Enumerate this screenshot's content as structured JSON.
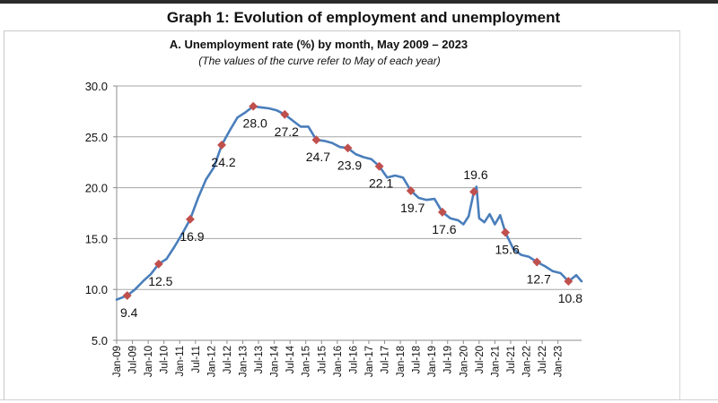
{
  "header": {
    "graph_title": "Graph 1: Evolution of employment and unemployment"
  },
  "chart_data": {
    "type": "line",
    "title": "A. Unemployment rate (%) by month, May  2009 – 2023",
    "subtitle": "(The values of the curve refer to May of each year)",
    "xlabel": "",
    "ylabel": "",
    "ylim": [
      5,
      30
    ],
    "yticks": [
      "5.0",
      "10.0",
      "15.0",
      "20.0",
      "25.0",
      "30.0"
    ],
    "grid": "horizontal",
    "x_range": [
      "2009-01",
      "2023-10"
    ],
    "xtick_labels": [
      "Jan-09",
      "Jul-09",
      "Jan-10",
      "Jul-10",
      "Jan-11",
      "Jul-11",
      "Jan-12",
      "Jul-12",
      "Jan-13",
      "Jul-13",
      "Jan-14",
      "Jul-14",
      "Jan-15",
      "Jul-15",
      "Jan-16",
      "Jul-16",
      "Jan-17",
      "Jul-17",
      "Jan-18",
      "Jul-18",
      "Jan-19",
      "Jul-19",
      "Jan-20",
      "Jul-20",
      "Jan-21",
      "Jul-21",
      "Jan-22",
      "Jul-22",
      "Jan-23"
    ],
    "line_color": "#4a7ebb",
    "marker_color": "#c0504d",
    "series": [
      {
        "points": [
          [
            "2009-01",
            9.0
          ],
          [
            "2009-03",
            9.2
          ],
          [
            "2009-05",
            9.4
          ],
          [
            "2009-08",
            10.0
          ],
          [
            "2009-11",
            10.8
          ],
          [
            "2010-02",
            11.5
          ],
          [
            "2010-05",
            12.5
          ],
          [
            "2010-08",
            13.0
          ],
          [
            "2010-11",
            14.2
          ],
          [
            "2011-02",
            15.5
          ],
          [
            "2011-05",
            16.9
          ],
          [
            "2011-08",
            19.0
          ],
          [
            "2011-11",
            20.8
          ],
          [
            "2012-02",
            22.0
          ],
          [
            "2012-05",
            24.2
          ],
          [
            "2012-08",
            25.6
          ],
          [
            "2012-11",
            26.9
          ],
          [
            "2013-02",
            27.4
          ],
          [
            "2013-05",
            28.0
          ],
          [
            "2013-08",
            27.9
          ],
          [
            "2013-11",
            27.8
          ],
          [
            "2014-02",
            27.6
          ],
          [
            "2014-05",
            27.2
          ],
          [
            "2014-08",
            26.6
          ],
          [
            "2014-11",
            26.0
          ],
          [
            "2015-02",
            26.0
          ],
          [
            "2015-05",
            24.7
          ],
          [
            "2015-08",
            24.6
          ],
          [
            "2015-11",
            24.4
          ],
          [
            "2016-02",
            24.0
          ],
          [
            "2016-05",
            23.9
          ],
          [
            "2016-08",
            23.3
          ],
          [
            "2016-11",
            23.0
          ],
          [
            "2017-02",
            22.8
          ],
          [
            "2017-05",
            22.1
          ],
          [
            "2017-08",
            21.0
          ],
          [
            "2017-11",
            21.2
          ],
          [
            "2018-02",
            21.0
          ],
          [
            "2018-05",
            19.7
          ],
          [
            "2018-08",
            19.0
          ],
          [
            "2018-11",
            18.8
          ],
          [
            "2019-02",
            18.9
          ],
          [
            "2019-05",
            17.6
          ],
          [
            "2019-08",
            17.0
          ],
          [
            "2019-11",
            16.8
          ],
          [
            "2020-01",
            16.4
          ],
          [
            "2020-03",
            17.2
          ],
          [
            "2020-05",
            19.6
          ],
          [
            "2020-06",
            20.1
          ],
          [
            "2020-07",
            17.0
          ],
          [
            "2020-09",
            16.6
          ],
          [
            "2020-11",
            17.4
          ],
          [
            "2021-01",
            16.4
          ],
          [
            "2021-03",
            17.3
          ],
          [
            "2021-05",
            15.6
          ],
          [
            "2021-08",
            14.0
          ],
          [
            "2021-11",
            13.4
          ],
          [
            "2022-02",
            13.2
          ],
          [
            "2022-05",
            12.7
          ],
          [
            "2022-08",
            12.3
          ],
          [
            "2022-11",
            11.8
          ],
          [
            "2023-02",
            11.6
          ],
          [
            "2023-05",
            10.8
          ],
          [
            "2023-08",
            11.4
          ],
          [
            "2023-10",
            10.8
          ]
        ]
      }
    ],
    "labeled_points": [
      {
        "x": "2009-05",
        "value": 9.4,
        "label": "9.4",
        "pos": "below"
      },
      {
        "x": "2010-05",
        "value": 12.5,
        "label": "12.5",
        "pos": "below"
      },
      {
        "x": "2011-05",
        "value": 16.9,
        "label": "16.9",
        "pos": "below"
      },
      {
        "x": "2012-05",
        "value": 24.2,
        "label": "24.2",
        "pos": "below"
      },
      {
        "x": "2013-05",
        "value": 28.0,
        "label": "28.0",
        "pos": "below"
      },
      {
        "x": "2014-05",
        "value": 27.2,
        "label": "27.2",
        "pos": "below"
      },
      {
        "x": "2015-05",
        "value": 24.7,
        "label": "24.7",
        "pos": "below"
      },
      {
        "x": "2016-05",
        "value": 23.9,
        "label": "23.9",
        "pos": "below"
      },
      {
        "x": "2017-05",
        "value": 22.1,
        "label": "22.1",
        "pos": "below"
      },
      {
        "x": "2018-05",
        "value": 19.7,
        "label": "19.7",
        "pos": "below"
      },
      {
        "x": "2019-05",
        "value": 17.6,
        "label": "17.6",
        "pos": "below"
      },
      {
        "x": "2020-05",
        "value": 19.6,
        "label": "19.6",
        "pos": "above"
      },
      {
        "x": "2021-05",
        "value": 15.6,
        "label": "15.6",
        "pos": "below"
      },
      {
        "x": "2022-05",
        "value": 12.7,
        "label": "12.7",
        "pos": "below"
      },
      {
        "x": "2023-05",
        "value": 10.8,
        "label": "10.8",
        "pos": "below"
      }
    ]
  }
}
